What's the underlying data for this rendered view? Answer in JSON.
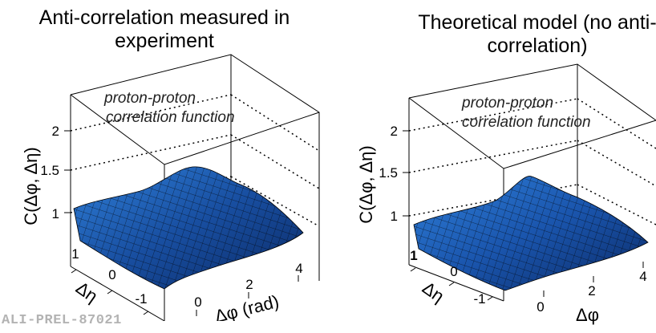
{
  "panels": {
    "left": {
      "title": "Anti-correlation measured in experiment",
      "annotation_line1": "proton-proton",
      "annotation_line2": "correlation function"
    },
    "right": {
      "title": "Theoretical model (no anti-correlation)",
      "annotation_line1": "proton-proton",
      "annotation_line2": "correlation function"
    }
  },
  "watermark": "ALI-PREL-87021",
  "colors": {
    "surface_dark": "#0b2a66",
    "surface_light": "#2f7fd8",
    "mesh": "#000000"
  },
  "chart_data": [
    {
      "type": "heatmap",
      "subtype": "surface-3d",
      "title": "Anti-correlation measured in experiment",
      "zlabel": "C(Δφ, Δη)",
      "xlabel": "Δφ (rad)",
      "ylabel": "Δη",
      "xticks": [
        "0",
        "2",
        "4"
      ],
      "yticks": [
        "-1",
        "0",
        "1"
      ],
      "zticks": [
        "1",
        "1.5",
        "2"
      ],
      "xlim": [
        -1.57,
        4.71
      ],
      "ylim": [
        -1.3,
        1.3
      ],
      "zlim": [
        0.8,
        2.4
      ],
      "surface": {
        "description_values": "C≈1 baseline with a depression near Δφ≈0, Δη≈0 rising to ≈1.15 ridge around Δφ≈π",
        "baseline": 1.0,
        "min": 0.85,
        "max": 1.2
      }
    },
    {
      "type": "heatmap",
      "subtype": "surface-3d",
      "title": "Theoretical model (no anti-correlation)",
      "zlabel": "C(Δφ, Δη)",
      "xlabel": "Δφ",
      "ylabel": "Δη",
      "xticks": [
        "0",
        "2",
        "4"
      ],
      "yticks": [
        "-1",
        "0",
        "1"
      ],
      "zticks": [
        "1",
        "1.5",
        "2"
      ],
      "xlim": [
        -1.57,
        4.71
      ],
      "ylim": [
        -1.3,
        1.3
      ],
      "zlim": [
        0.8,
        2.4
      ],
      "surface": {
        "baseline": 1.0,
        "min": 0.9,
        "max": 1.25
      }
    }
  ]
}
